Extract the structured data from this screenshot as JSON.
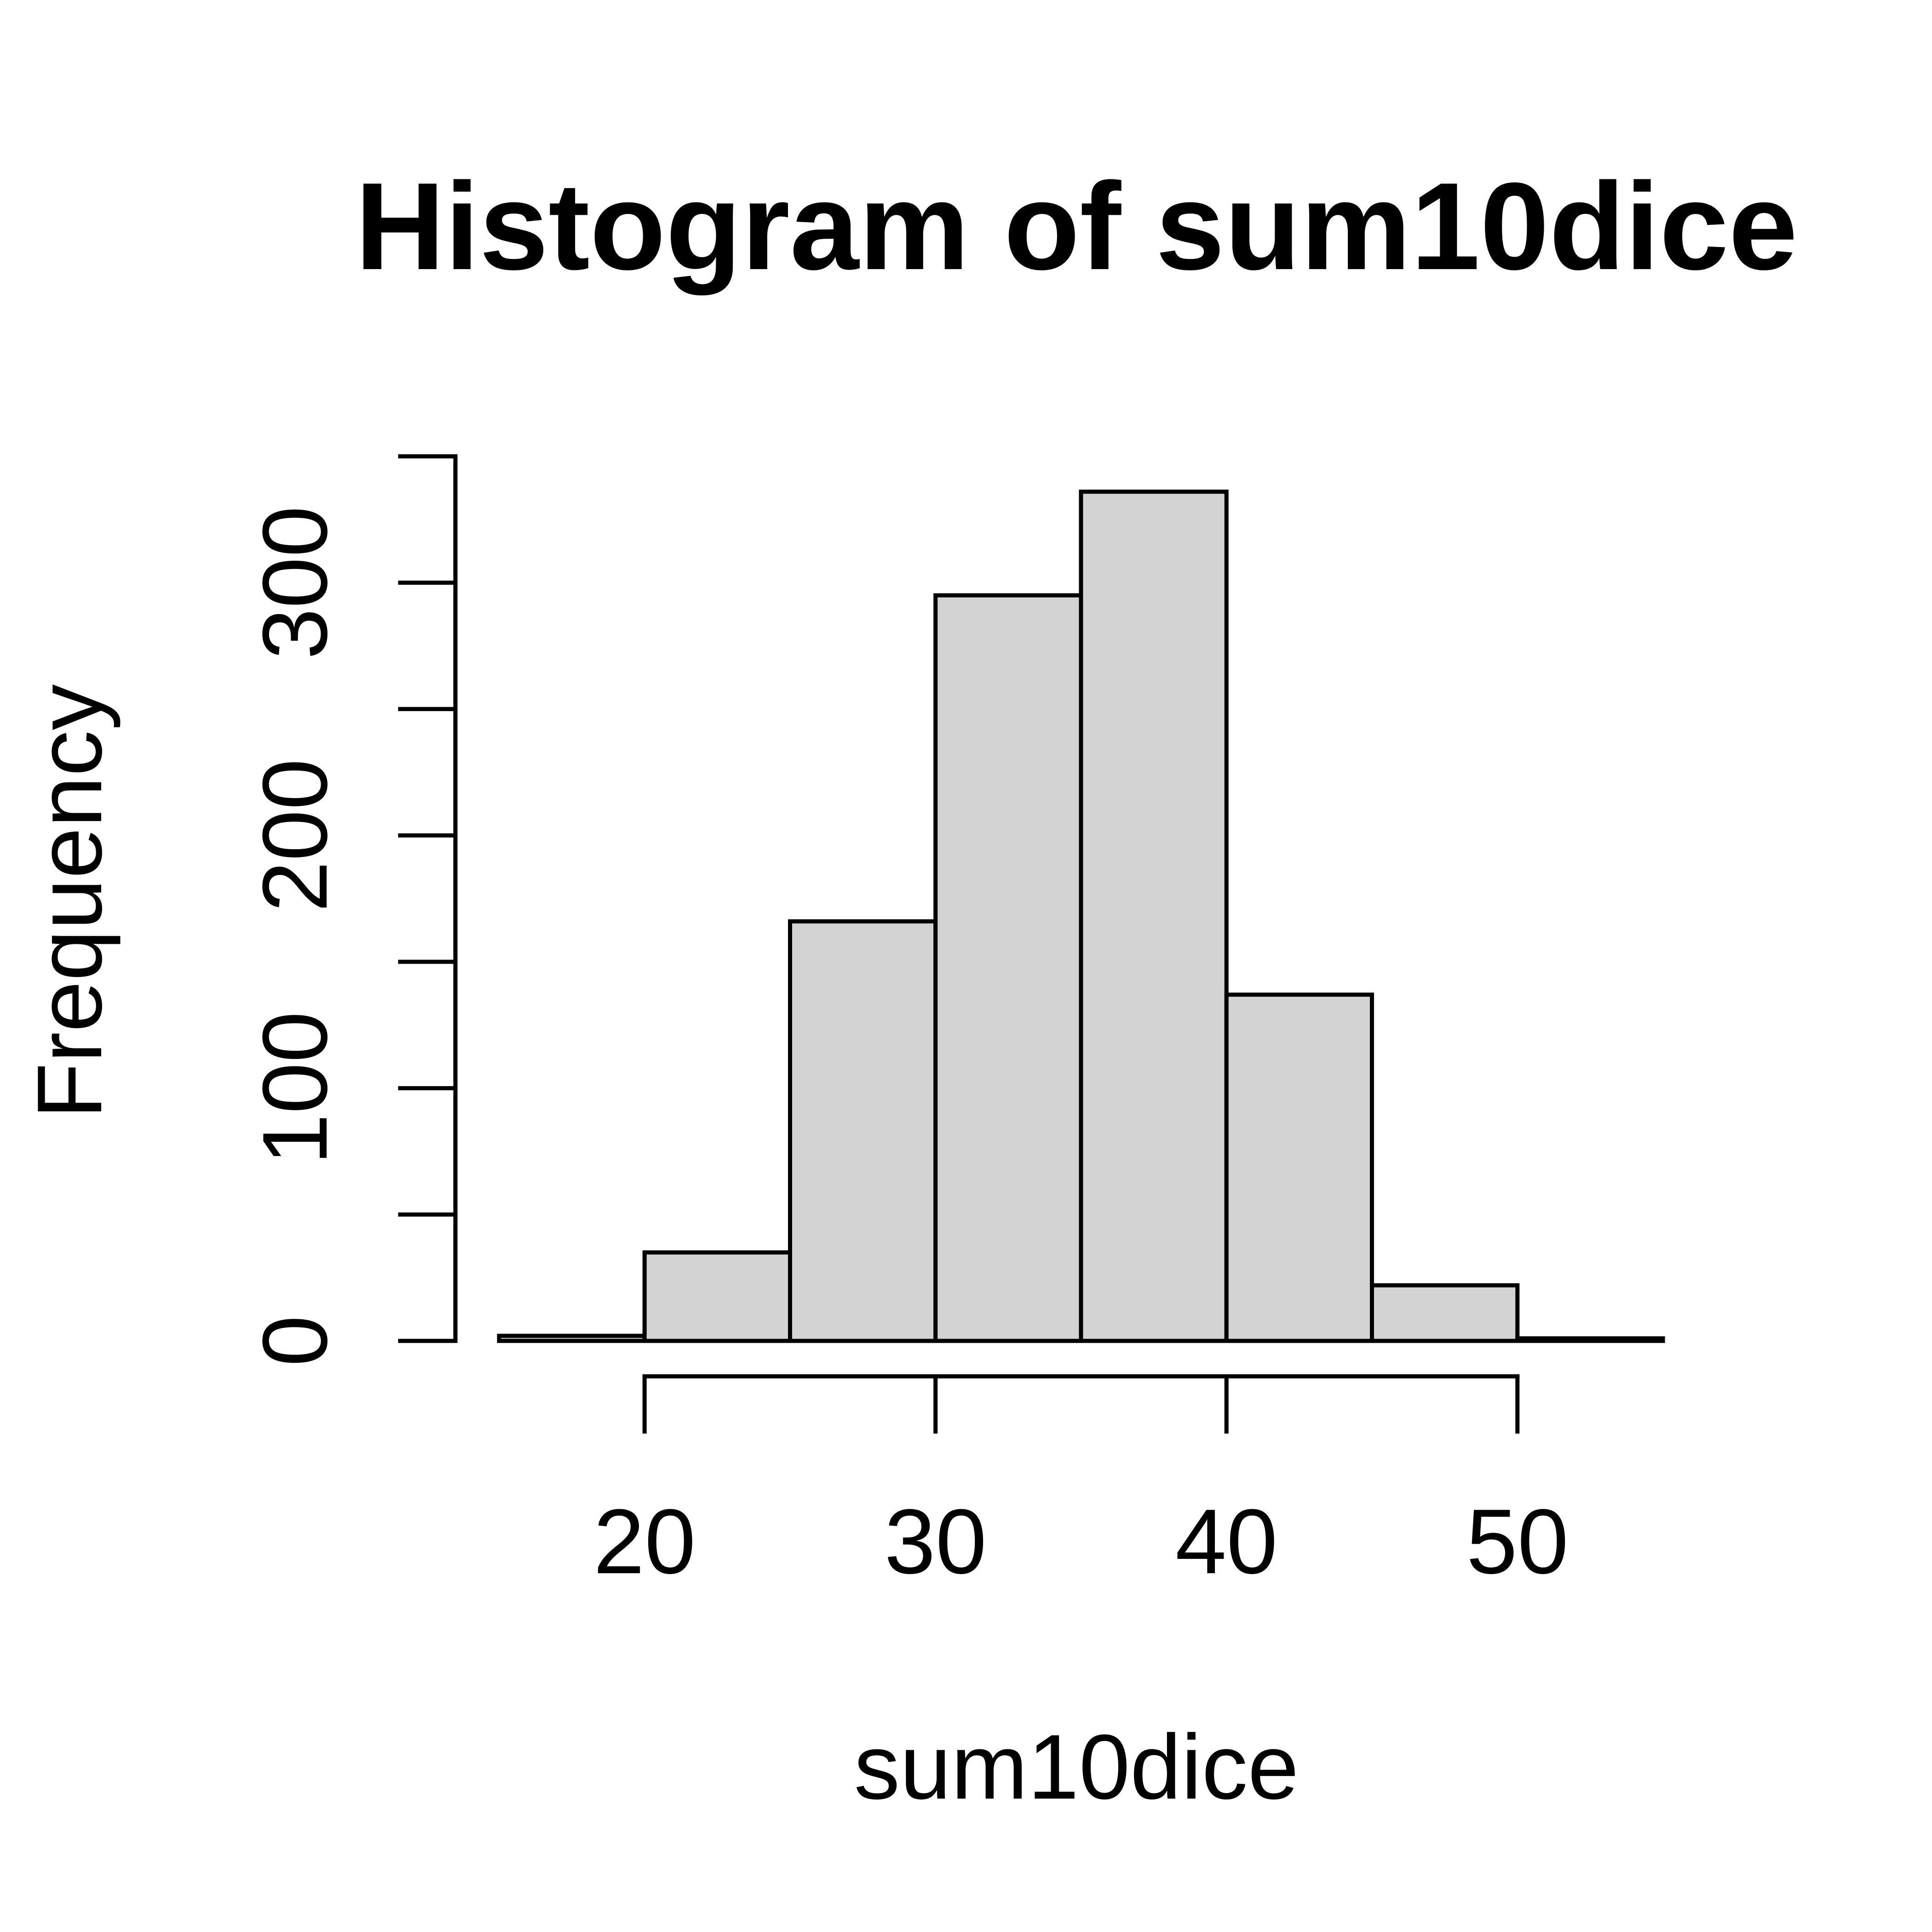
{
  "chart_data": {
    "type": "bar",
    "subtype": "histogram",
    "title": "Histogram of sum10dice",
    "xlabel": "sum10dice",
    "ylabel": "Frequency",
    "bins": [
      {
        "x0": 15,
        "x1": 20,
        "count": 2
      },
      {
        "x0": 20,
        "x1": 25,
        "count": 35
      },
      {
        "x0": 25,
        "x1": 30,
        "count": 166
      },
      {
        "x0": 30,
        "x1": 35,
        "count": 295
      },
      {
        "x0": 35,
        "x1": 40,
        "count": 336
      },
      {
        "x0": 40,
        "x1": 45,
        "count": 137
      },
      {
        "x0": 45,
        "x1": 50,
        "count": 22
      },
      {
        "x0": 50,
        "x1": 55,
        "count": 1
      }
    ],
    "xlim": [
      15,
      55
    ],
    "ylim": [
      0,
      349
    ],
    "x_ticks": [
      20,
      30,
      40,
      50
    ],
    "x_tick_labels": [
      "20",
      "30",
      "40",
      "50"
    ],
    "y_ticks": [
      0,
      50,
      100,
      150,
      200,
      250,
      300,
      350
    ],
    "y_tick_labels": [
      "0",
      "",
      "100",
      "",
      "200",
      "",
      "300",
      ""
    ],
    "bar_fill": "#d3d3d3",
    "bar_stroke": "#000000",
    "grid": false,
    "legend": "none"
  }
}
